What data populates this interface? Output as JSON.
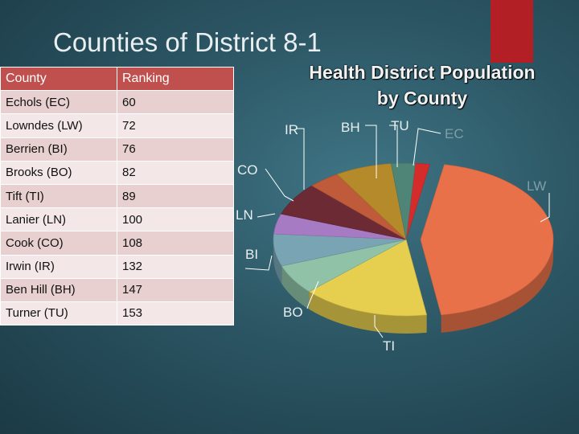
{
  "slide_title": "Counties of District 8-1",
  "table": {
    "headers": [
      "County",
      "Ranking"
    ],
    "rows": [
      [
        "Echols (EC)",
        "60"
      ],
      [
        "Lowndes (LW)",
        "72"
      ],
      [
        "Berrien (BI)",
        "76"
      ],
      [
        "Brooks (BO)",
        "82"
      ],
      [
        "Tift (TI)",
        "89"
      ],
      [
        "Lanier (LN)",
        "100"
      ],
      [
        "Cook (CO)",
        "108"
      ],
      [
        "Irwin (IR)",
        "132"
      ],
      [
        "Ben Hill (BH)",
        "147"
      ],
      [
        "Turner (TU)",
        "153"
      ]
    ]
  },
  "chart_data": {
    "type": "pie",
    "title": "Health District Population by County",
    "title_line1": "Health District Population",
    "title_line2": "by County",
    "three_d": true,
    "slices": [
      {
        "label": "EC",
        "value": 1.8,
        "color": "#d62b2b"
      },
      {
        "label": "LW",
        "value": 46.0,
        "color": "#e8714a"
      },
      {
        "label": "TI",
        "value": 16.0,
        "color": "#e6cf4e"
      },
      {
        "label": "BO",
        "value": 6.5,
        "color": "#8fc2a6"
      },
      {
        "label": "BI",
        "value": 7.0,
        "color": "#79a4b3"
      },
      {
        "label": "LN",
        "value": 4.4,
        "color": "#a77bc3"
      },
      {
        "label": "CO",
        "value": 7.2,
        "color": "#6b2a34"
      },
      {
        "label": "IR",
        "value": 4.0,
        "color": "#bf5a3a"
      },
      {
        "label": "BH",
        "value": 7.1,
        "color": "#b58a2a"
      },
      {
        "label": "TU",
        "value": 3.0,
        "color": "#4f8577"
      }
    ]
  }
}
